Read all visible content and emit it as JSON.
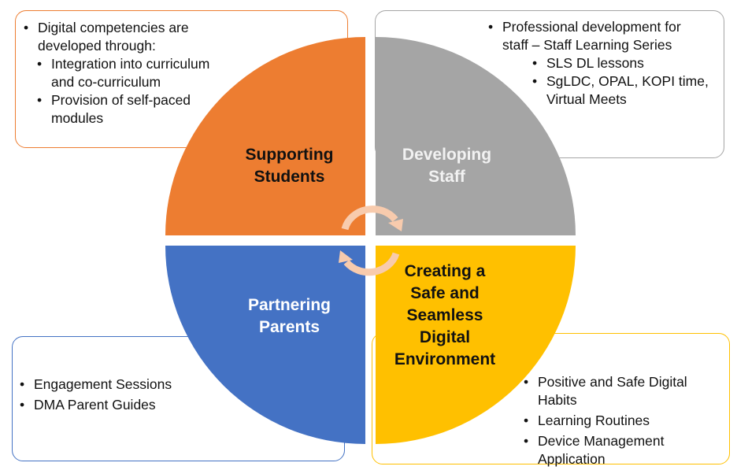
{
  "quadrants": {
    "top_left": {
      "label_lines": [
        "Supporting",
        "Students"
      ],
      "color": "#ed7d31",
      "items": [
        {
          "level": 1,
          "lines": [
            "Digital competencies are",
            "developed through:"
          ]
        },
        {
          "level": 2,
          "lines": [
            "Integration into curriculum",
            "and co-curriculum"
          ]
        },
        {
          "level": 2,
          "lines": [
            "Provision of self-paced",
            "modules"
          ]
        }
      ]
    },
    "top_right": {
      "label_lines": [
        "Developing",
        "Staff"
      ],
      "color": "#a5a5a5",
      "items": [
        {
          "level": 1,
          "lines": [
            "Professional development for",
            "staff – Staff Learning Series"
          ]
        },
        {
          "level": 2,
          "lines": [
            "SLS DL lessons"
          ]
        },
        {
          "level": 2,
          "lines": [
            "SgLDC, OPAL, KOPI time,",
            "Virtual Meets"
          ]
        }
      ]
    },
    "bottom_left": {
      "label_lines": [
        "Partnering",
        "Parents"
      ],
      "color": "#4472c4",
      "items": [
        {
          "level": 1,
          "lines": [
            "Engagement Sessions"
          ]
        },
        {
          "level": 1,
          "lines": [
            "DMA Parent Guides"
          ]
        }
      ]
    },
    "bottom_right": {
      "label_lines": [
        "Creating a",
        "Safe and",
        "Seamless",
        "Digital",
        "Environment"
      ],
      "color": "#ffc000",
      "items": [
        {
          "level": 1,
          "lines": [
            "Positive and Safe Digital",
            "Habits"
          ]
        },
        {
          "level": 1,
          "lines": [
            "Learning Routines"
          ]
        },
        {
          "level": 1,
          "lines": [
            "Device Management",
            "Application"
          ]
        }
      ]
    }
  },
  "center_cycle": {
    "icon": "circular-arrows-icon",
    "color": "#f8cbad"
  }
}
